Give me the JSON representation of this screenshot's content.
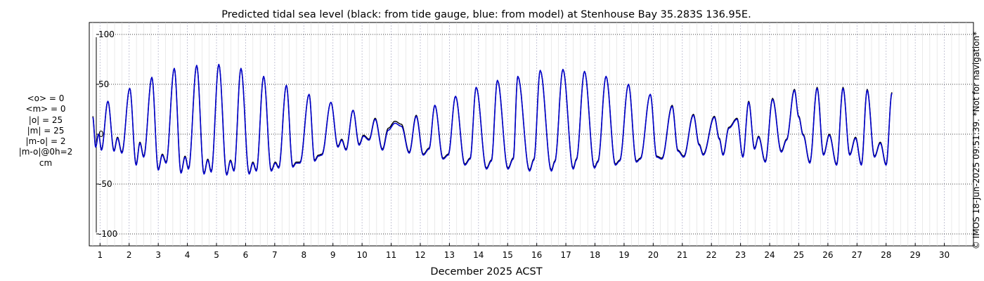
{
  "chart_data": {
    "type": "line",
    "title": "Predicted tidal sea level (black: from tide gauge, blue: from model) at Stenhouse Bay 35.283S 136.95E.",
    "xlabel": "December 2025 ACST",
    "ylabel": "cm",
    "xlim": [
      0.63,
      31.0
    ],
    "ylim": [
      -112,
      112
    ],
    "x_ticks": [
      1,
      2,
      3,
      4,
      5,
      6,
      7,
      8,
      9,
      10,
      11,
      12,
      13,
      14,
      15,
      16,
      17,
      18,
      19,
      20,
      21,
      22,
      23,
      24,
      25,
      26,
      27,
      28,
      29,
      30
    ],
    "x_tick_labels": [
      "1",
      "2",
      "3",
      "4",
      "5",
      "6",
      "7",
      "8",
      "9",
      "10",
      "11",
      "12",
      "13",
      "14",
      "15",
      "16",
      "17",
      "18",
      "19",
      "20",
      "21",
      "22",
      "23",
      "24",
      "25",
      "26",
      "27",
      "28",
      "29",
      "30"
    ],
    "y_ticks": [
      -100,
      -50,
      0,
      50,
      100
    ],
    "y_tick_labels": [
      "-100",
      "-50",
      "0",
      "50",
      "100"
    ],
    "grid": true,
    "series": [
      {
        "name": "from tide gauge",
        "color": "#000000",
        "extrema": [
          [
            0.75,
            18
          ],
          [
            0.85,
            -12
          ],
          [
            0.95,
            0
          ],
          [
            1.05,
            -15
          ],
          [
            1.27,
            33
          ],
          [
            1.48,
            -16
          ],
          [
            1.6,
            -3
          ],
          [
            1.75,
            -18
          ],
          [
            2.02,
            46
          ],
          [
            2.24,
            -30
          ],
          [
            2.37,
            -8
          ],
          [
            2.5,
            -22
          ],
          [
            2.78,
            57
          ],
          [
            3.0,
            -35
          ],
          [
            3.14,
            -20
          ],
          [
            3.27,
            -28
          ],
          [
            3.55,
            66
          ],
          [
            3.78,
            -38
          ],
          [
            3.92,
            -22
          ],
          [
            4.04,
            -34
          ],
          [
            4.32,
            69
          ],
          [
            4.57,
            -39
          ],
          [
            4.7,
            -25
          ],
          [
            4.82,
            -37
          ],
          [
            5.08,
            70
          ],
          [
            5.35,
            -40
          ],
          [
            5.48,
            -26
          ],
          [
            5.6,
            -36
          ],
          [
            5.84,
            66
          ],
          [
            6.12,
            -39
          ],
          [
            6.25,
            -28
          ],
          [
            6.37,
            -36
          ],
          [
            6.62,
            58
          ],
          [
            6.88,
            -36
          ],
          [
            7.02,
            -28
          ],
          [
            7.14,
            -33
          ],
          [
            7.4,
            49
          ],
          [
            7.62,
            -32
          ],
          [
            7.74,
            -28
          ],
          [
            7.87,
            -28
          ],
          [
            8.18,
            40
          ],
          [
            8.37,
            -26
          ],
          [
            8.5,
            -21
          ],
          [
            8.62,
            -20
          ],
          [
            8.93,
            32
          ],
          [
            9.17,
            -12
          ],
          [
            9.3,
            -5
          ],
          [
            9.45,
            -15
          ],
          [
            9.69,
            24
          ],
          [
            9.9,
            -10
          ],
          [
            10.05,
            -1
          ],
          [
            10.24,
            -5
          ],
          [
            10.45,
            16
          ],
          [
            10.7,
            -15
          ],
          [
            10.9,
            6
          ],
          [
            11.13,
            13
          ],
          [
            11.35,
            10
          ],
          [
            11.62,
            -18
          ],
          [
            11.86,
            19
          ],
          [
            12.1,
            -20
          ],
          [
            12.3,
            -14
          ],
          [
            12.5,
            29
          ],
          [
            12.78,
            -24
          ],
          [
            12.96,
            -20
          ],
          [
            13.21,
            38
          ],
          [
            13.53,
            -30
          ],
          [
            13.71,
            -24
          ],
          [
            13.92,
            47
          ],
          [
            14.27,
            -34
          ],
          [
            14.44,
            -26
          ],
          [
            14.65,
            54
          ],
          [
            15.01,
            -34
          ],
          [
            15.19,
            -24
          ],
          [
            15.35,
            58
          ],
          [
            15.75,
            -36
          ],
          [
            15.9,
            -25
          ],
          [
            16.12,
            64
          ],
          [
            16.5,
            -36
          ],
          [
            16.62,
            -27
          ],
          [
            16.9,
            65
          ],
          [
            17.25,
            -34
          ],
          [
            17.36,
            -25
          ],
          [
            17.64,
            63
          ],
          [
            17.98,
            -33
          ],
          [
            18.1,
            -27
          ],
          [
            18.38,
            58
          ],
          [
            18.7,
            -30
          ],
          [
            18.85,
            -26
          ],
          [
            19.15,
            50
          ],
          [
            19.42,
            -27
          ],
          [
            19.56,
            -24
          ],
          [
            19.9,
            40
          ],
          [
            20.12,
            -22
          ],
          [
            20.3,
            -24
          ],
          [
            20.65,
            29
          ],
          [
            20.85,
            -16
          ],
          [
            21.05,
            -22
          ],
          [
            21.38,
            20
          ],
          [
            21.58,
            -10
          ],
          [
            21.72,
            -20
          ],
          [
            22.1,
            18
          ],
          [
            22.27,
            -4
          ],
          [
            22.4,
            -20
          ],
          [
            22.6,
            7
          ],
          [
            22.88,
            16
          ],
          [
            23.08,
            -22
          ],
          [
            23.28,
            33
          ],
          [
            23.48,
            -14
          ],
          [
            23.62,
            -2
          ],
          [
            23.85,
            -27
          ],
          [
            24.1,
            36
          ],
          [
            24.4,
            -17
          ],
          [
            24.58,
            -5
          ],
          [
            24.85,
            45
          ],
          [
            25.0,
            18
          ],
          [
            25.15,
            0
          ],
          [
            25.38,
            -28
          ],
          [
            25.63,
            47
          ],
          [
            25.85,
            -20
          ],
          [
            26.05,
            0
          ],
          [
            26.3,
            -30
          ],
          [
            26.52,
            47
          ],
          [
            26.75,
            -20
          ],
          [
            26.95,
            -3
          ],
          [
            27.15,
            -30
          ],
          [
            27.35,
            45
          ],
          [
            27.6,
            -22
          ],
          [
            27.8,
            -8
          ],
          [
            28.0,
            -30
          ],
          [
            28.2,
            42
          ]
        ]
      },
      {
        "name": "from model",
        "color": "#0000cc",
        "extrema": [
          [
            0.75,
            17
          ],
          [
            0.85,
            -13
          ],
          [
            0.95,
            0
          ],
          [
            1.05,
            -16
          ],
          [
            1.27,
            33
          ],
          [
            1.48,
            -17
          ],
          [
            1.6,
            -4
          ],
          [
            1.75,
            -19
          ],
          [
            2.02,
            46
          ],
          [
            2.24,
            -31
          ],
          [
            2.37,
            -9
          ],
          [
            2.5,
            -23
          ],
          [
            2.78,
            57
          ],
          [
            3.0,
            -36
          ],
          [
            3.14,
            -21
          ],
          [
            3.27,
            -29
          ],
          [
            3.55,
            66
          ],
          [
            3.78,
            -39
          ],
          [
            3.92,
            -23
          ],
          [
            4.04,
            -35
          ],
          [
            4.32,
            69
          ],
          [
            4.57,
            -40
          ],
          [
            4.7,
            -26
          ],
          [
            4.82,
            -38
          ],
          [
            5.08,
            70
          ],
          [
            5.35,
            -41
          ],
          [
            5.48,
            -27
          ],
          [
            5.6,
            -37
          ],
          [
            5.84,
            66
          ],
          [
            6.12,
            -40
          ],
          [
            6.25,
            -29
          ],
          [
            6.37,
            -37
          ],
          [
            6.62,
            58
          ],
          [
            6.88,
            -37
          ],
          [
            7.02,
            -29
          ],
          [
            7.14,
            -34
          ],
          [
            7.4,
            49
          ],
          [
            7.62,
            -33
          ],
          [
            7.74,
            -29
          ],
          [
            7.87,
            -29
          ],
          [
            8.18,
            40
          ],
          [
            8.37,
            -27
          ],
          [
            8.5,
            -22
          ],
          [
            8.62,
            -21
          ],
          [
            8.93,
            32
          ],
          [
            9.17,
            -13
          ],
          [
            9.3,
            -6
          ],
          [
            9.45,
            -16
          ],
          [
            9.69,
            24
          ],
          [
            9.9,
            -11
          ],
          [
            10.05,
            -2
          ],
          [
            10.24,
            -6
          ],
          [
            10.45,
            15
          ],
          [
            10.7,
            -16
          ],
          [
            10.9,
            4
          ],
          [
            11.13,
            11
          ],
          [
            11.35,
            8
          ],
          [
            11.62,
            -19
          ],
          [
            11.86,
            18
          ],
          [
            12.1,
            -21
          ],
          [
            12.3,
            -15
          ],
          [
            12.5,
            29
          ],
          [
            12.78,
            -25
          ],
          [
            12.96,
            -21
          ],
          [
            13.21,
            38
          ],
          [
            13.53,
            -31
          ],
          [
            13.71,
            -25
          ],
          [
            13.92,
            47
          ],
          [
            14.27,
            -35
          ],
          [
            14.44,
            -27
          ],
          [
            14.65,
            54
          ],
          [
            15.01,
            -35
          ],
          [
            15.19,
            -25
          ],
          [
            15.35,
            58
          ],
          [
            15.75,
            -37
          ],
          [
            15.9,
            -26
          ],
          [
            16.12,
            64
          ],
          [
            16.5,
            -37
          ],
          [
            16.62,
            -28
          ],
          [
            16.9,
            65
          ],
          [
            17.25,
            -35
          ],
          [
            17.36,
            -26
          ],
          [
            17.64,
            63
          ],
          [
            17.98,
            -34
          ],
          [
            18.1,
            -28
          ],
          [
            18.38,
            58
          ],
          [
            18.7,
            -31
          ],
          [
            18.85,
            -27
          ],
          [
            19.15,
            50
          ],
          [
            19.42,
            -28
          ],
          [
            19.56,
            -25
          ],
          [
            19.9,
            40
          ],
          [
            20.12,
            -23
          ],
          [
            20.3,
            -25
          ],
          [
            20.65,
            28
          ],
          [
            20.85,
            -17
          ],
          [
            21.05,
            -23
          ],
          [
            21.38,
            19
          ],
          [
            21.58,
            -11
          ],
          [
            21.72,
            -21
          ],
          [
            22.1,
            17
          ],
          [
            22.27,
            -5
          ],
          [
            22.4,
            -21
          ],
          [
            22.6,
            6
          ],
          [
            22.88,
            15
          ],
          [
            23.08,
            -23
          ],
          [
            23.28,
            32
          ],
          [
            23.48,
            -15
          ],
          [
            23.62,
            -3
          ],
          [
            23.85,
            -28
          ],
          [
            24.1,
            35
          ],
          [
            24.4,
            -18
          ],
          [
            24.58,
            -6
          ],
          [
            24.85,
            44
          ],
          [
            25.0,
            17
          ],
          [
            25.15,
            -1
          ],
          [
            25.38,
            -29
          ],
          [
            25.63,
            46
          ],
          [
            25.85,
            -21
          ],
          [
            26.05,
            -1
          ],
          [
            26.3,
            -31
          ],
          [
            26.52,
            46
          ],
          [
            26.75,
            -21
          ],
          [
            26.95,
            -4
          ],
          [
            27.15,
            -31
          ],
          [
            27.35,
            44
          ],
          [
            27.6,
            -23
          ],
          [
            27.8,
            -9
          ],
          [
            28.0,
            -31
          ],
          [
            28.2,
            41
          ]
        ]
      }
    ],
    "stats": [
      "<o> = 0",
      "<m> = 0",
      "|o| = 25",
      "|m| = 25",
      "|m-o| = 2",
      "|m-o|@0h=2",
      "cm"
    ],
    "side_note": "© IMOS 18-Jun-2025 09:51:39. *Not for navigation*"
  }
}
